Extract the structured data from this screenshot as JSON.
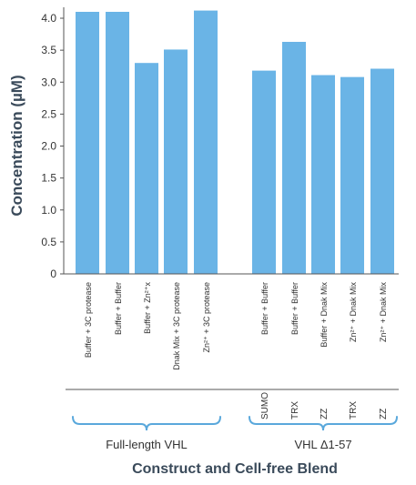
{
  "chart_data": {
    "type": "bar",
    "ylabel": "Concentration (µM)",
    "xlabel": "Construct and Cell-free Blend",
    "ylim": [
      0,
      4.1
    ],
    "yticks": [
      "0",
      "0.5",
      "1.0",
      "1.5",
      "2.0",
      "2.5",
      "3.0",
      "3.5",
      "4.0"
    ],
    "categories": [
      "Buffer + 3C protease",
      "Buffer + Buffer",
      "Buffer + Zn²⁺x",
      "Dnak Mix + 3C protease",
      "Zn²⁺ + 3C protease",
      "Buffer + Buffer",
      "Buffer + Buffer",
      "Buffer + Dnak Mix",
      "Zn²⁺ + Dnak Mix",
      "Zn²⁺ + Dnak Mix"
    ],
    "values": [
      4.1,
      4.1,
      3.3,
      3.51,
      4.12,
      3.18,
      3.63,
      3.11,
      3.08,
      3.21
    ],
    "tags": [
      "",
      "",
      "",
      "",
      "",
      "SUMO",
      "TRX",
      "ZZ",
      "TRX",
      "ZZ"
    ],
    "groups": [
      {
        "label": "Full-length VHL",
        "start": 0,
        "end": 4
      },
      {
        "label": "VHL Δ1-57",
        "start": 5,
        "end": 9
      }
    ],
    "bar_color": "#6ab4e6",
    "grid": false
  }
}
